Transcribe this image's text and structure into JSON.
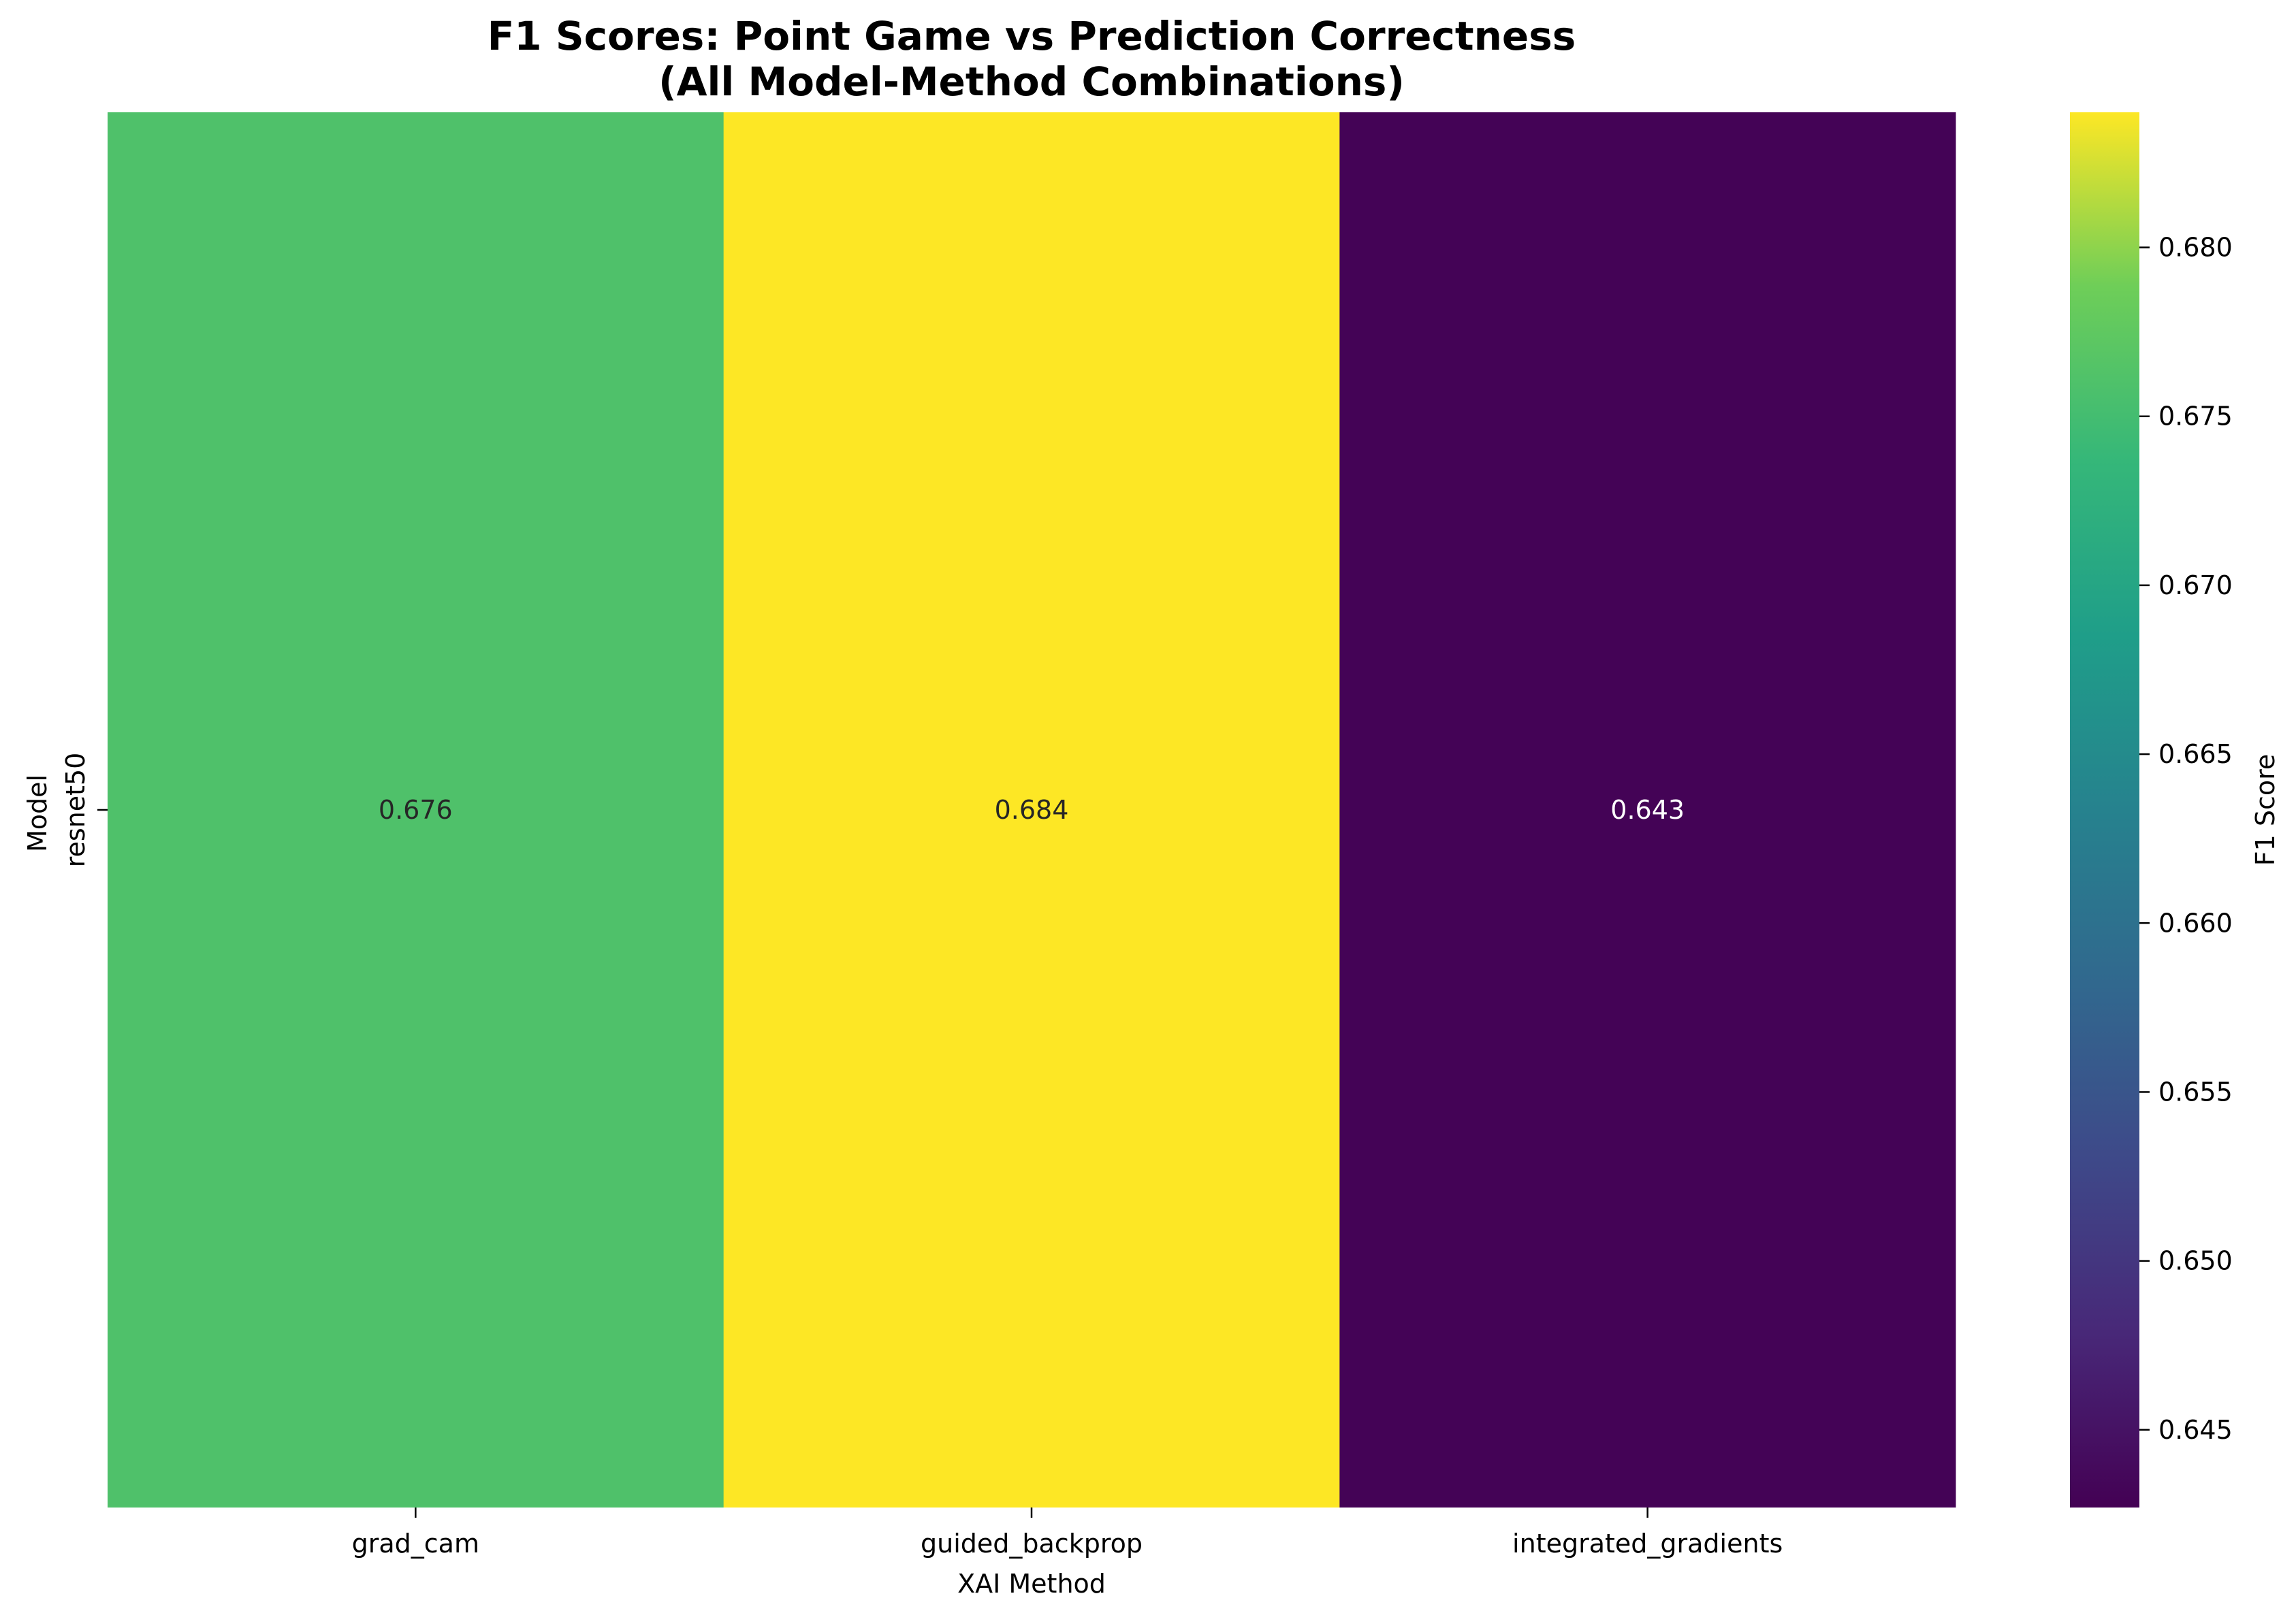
{
  "chart_data": {
    "type": "heatmap",
    "title_lines": [
      "F1 Scores: Point Game vs Prediction Correctness",
      "(All Model-Method Combinations)"
    ],
    "xlabel": "XAI Method",
    "ylabel": "Model",
    "columns": [
      "grad_cam",
      "guided_backprop",
      "integrated_gradients"
    ],
    "rows": [
      "resnet50"
    ],
    "values": [
      [
        0.676,
        0.684,
        0.643
      ]
    ],
    "value_labels": [
      [
        "0.676",
        "0.684",
        "0.643"
      ]
    ],
    "colormap": "viridis",
    "colorbar": {
      "label": "F1 Score",
      "min": 0.6427,
      "max": 0.684,
      "ticks": [
        0.645,
        0.65,
        0.655,
        0.66,
        0.665,
        0.67,
        0.675,
        0.68
      ],
      "tick_labels": [
        "0.645",
        "0.650",
        "0.655",
        "0.660",
        "0.665",
        "0.670",
        "0.675",
        "0.680"
      ]
    },
    "grid": false
  }
}
